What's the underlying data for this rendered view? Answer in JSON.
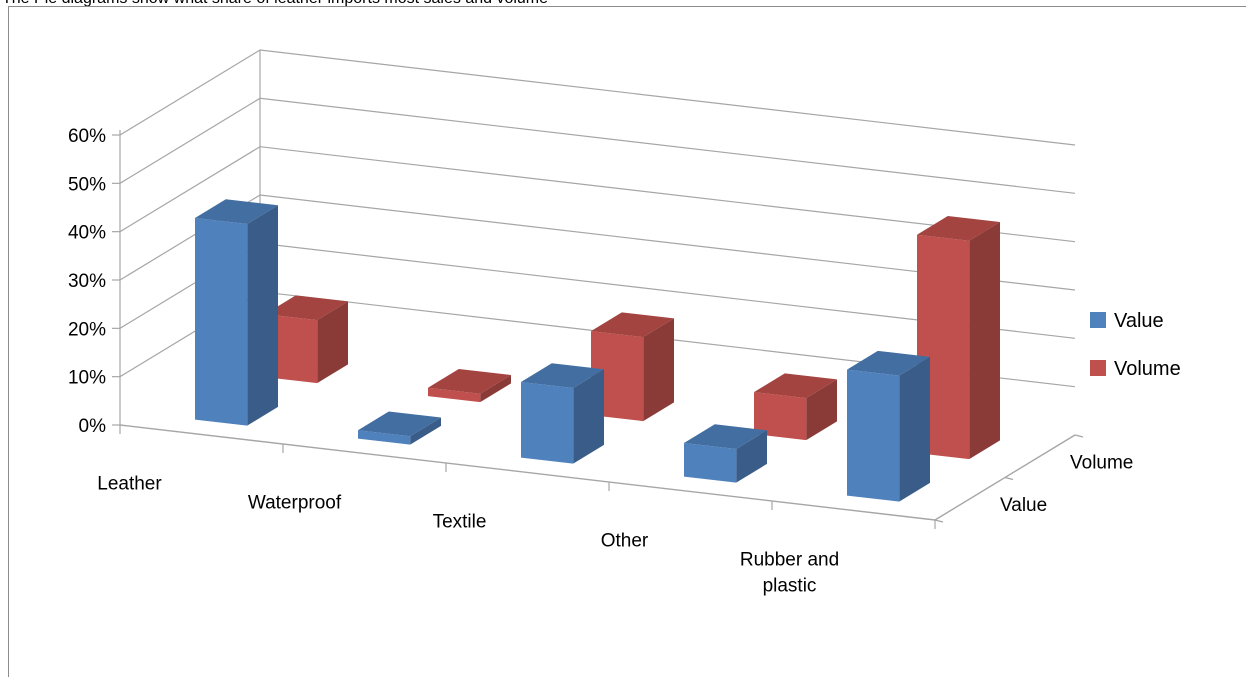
{
  "caption": "The Pie diagrams show what share of leather imports most sales and volume",
  "colors": {
    "value": "#4f81bd",
    "volume": "#c0504d",
    "gridline": "#a6a6a6"
  },
  "chart_data": {
    "type": "bar",
    "style": "3d-clustered-rows",
    "categories": [
      "Leather",
      "Waterproof",
      "Textile",
      "Other",
      "Rubber and plastic"
    ],
    "depth_labels": [
      "Volume",
      "Value"
    ],
    "series": [
      {
        "name": "Value",
        "values": [
          0.48,
          0.02,
          0.18,
          0.08,
          0.3
        ]
      },
      {
        "name": "Volume",
        "values": [
          0.15,
          0.02,
          0.2,
          0.1,
          0.52
        ]
      }
    ],
    "y_ticks": [
      "0%",
      "10%",
      "20%",
      "30%",
      "40%",
      "50%",
      "60%"
    ],
    "ylim": [
      0,
      0.6
    ],
    "legend_position": "right",
    "grid": true
  }
}
